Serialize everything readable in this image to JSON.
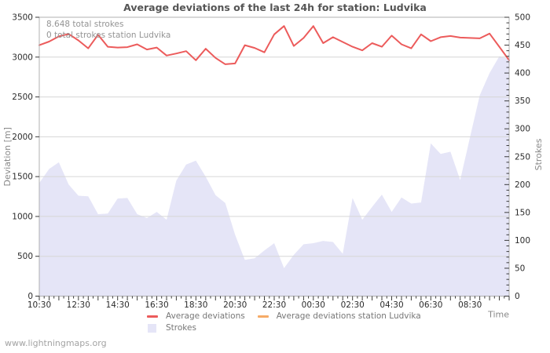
{
  "title": "Average deviations of the last 24h for station: Ludvika",
  "annotations": {
    "total_strokes": "8.648 total strokes",
    "station_strokes": "0 total strokes station Ludvika"
  },
  "legend": {
    "avg_deviations": "Average deviations",
    "avg_deviations_station": "Average deviations station Ludvika",
    "strokes": "Strokes"
  },
  "watermark": "www.lightningmaps.org",
  "colors": {
    "deviation_line": "#ec5b5b",
    "station_line": "#f6ab67",
    "strokes_fill": "#e5e5f7",
    "grid": "#d6d6d6",
    "frame": "#b0b0b0",
    "tick": "#3a3a3a",
    "tick_label": "#2b2b2b",
    "axis_title": "#888888",
    "title": "#555555",
    "annotation": "#949494",
    "legend_text": "#777777",
    "watermark": "#a3a3a3"
  },
  "chart_data": {
    "type": "line+area",
    "x_axis": {
      "title": "Time",
      "tick_labels": [
        "10:30",
        "12:30",
        "14:30",
        "16:30",
        "18:30",
        "20:30",
        "22:30",
        "00:30",
        "02:30",
        "04:30",
        "06:30",
        "08:30"
      ],
      "points_per_label": 4,
      "minutes_per_point": 30
    },
    "left_axis": {
      "title": "Deviation [m]",
      "min": 0,
      "max": 3500,
      "tick_step": 500
    },
    "right_axis": {
      "title": "Strokes",
      "min": 0,
      "max": 500,
      "tick_step": 50,
      "minor_step": 10
    },
    "series": [
      {
        "name": "Average deviations",
        "axis": "left",
        "type": "line",
        "color_key": "deviation_line",
        "values": [
          3150,
          3195,
          3260,
          3290,
          3210,
          3110,
          3280,
          3130,
          3120,
          3125,
          3160,
          3095,
          3120,
          3020,
          3045,
          3075,
          2960,
          3105,
          2990,
          2910,
          2920,
          3150,
          3115,
          3060,
          3285,
          3390,
          3140,
          3240,
          3390,
          3175,
          3250,
          3190,
          3130,
          3085,
          3175,
          3130,
          3270,
          3160,
          3110,
          3285,
          3200,
          3250,
          3265,
          3245,
          3240,
          3235,
          3295,
          3130,
          2960
        ]
      },
      {
        "name": "Average deviations station Ludvika",
        "axis": "left",
        "type": "line",
        "color_key": "station_line",
        "values": []
      },
      {
        "name": "Strokes",
        "axis": "right",
        "type": "area",
        "color_key": "strokes_fill",
        "values": [
          203,
          228,
          240,
          200,
          180,
          179,
          147,
          148,
          175,
          176,
          147,
          140,
          151,
          137,
          207,
          236,
          243,
          214,
          181,
          167,
          110,
          65,
          68,
          82,
          95,
          50,
          74,
          93,
          95,
          99,
          97,
          76,
          176,
          137,
          160,
          182,
          151,
          177,
          166,
          168,
          274,
          255,
          259,
          208,
          285,
          360,
          400,
          430,
          425
        ]
      }
    ]
  }
}
